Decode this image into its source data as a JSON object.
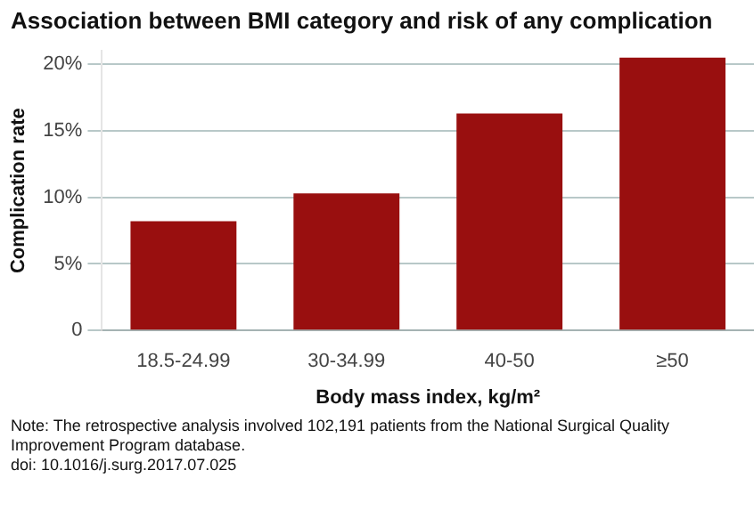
{
  "chart_data": {
    "type": "bar",
    "title": "Association between BMI category and risk of any complication",
    "xlabel": "Body mass index, kg/m²",
    "ylabel": "Complication rate",
    "categories": [
      "18.5-24.99",
      "30-34.99",
      "40-50",
      "≥50"
    ],
    "values": [
      8.2,
      10.3,
      16.3,
      20.5
    ],
    "color": "#990f0f",
    "ylim": [
      0,
      21
    ],
    "yticks": [
      {
        "value": 0,
        "label": "0"
      },
      {
        "value": 5,
        "label": "5%"
      },
      {
        "value": 10,
        "label": "10%"
      },
      {
        "value": 15,
        "label": "15%"
      },
      {
        "value": 20,
        "label": "20%"
      }
    ],
    "grid": "y",
    "annotations": [
      "Note: The retrospective analysis involved 102,191 patients from the National Surgical Quality Improvement Program database.",
      "doi: 10.1016/j.surg.2017.07.025"
    ]
  }
}
